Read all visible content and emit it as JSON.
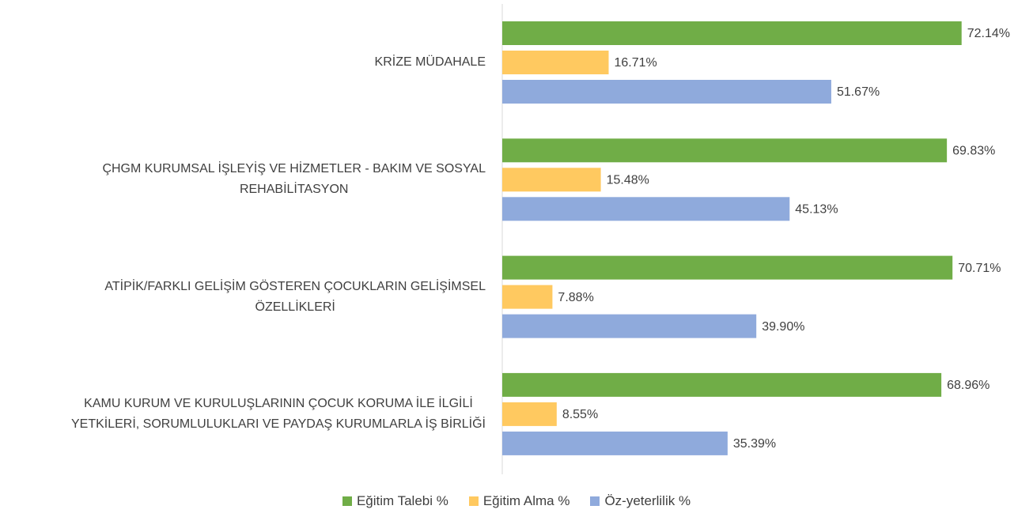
{
  "chart_data": {
    "type": "bar",
    "orientation": "horizontal",
    "categories": [
      "KRİZE MÜDAHALE",
      "ÇHGM KURUMSAL İŞLEYİŞ VE HİZMETLER - BAKIM VE SOSYAL\nREHABİLİTASYON",
      "ATİPİK/FARKLI GELİŞİM GÖSTEREN ÇOCUKLARIN GELİŞİMSEL\nÖZELLİKLERİ",
      "KAMU KURUM VE KURULUŞLARININ ÇOCUK KORUMA İLE İLGİLİ\nYETKİLERİ, SORUMLULUKLARI VE PAYDAŞ KURUMLARLA İŞ BİRLİĞİ"
    ],
    "series": [
      {
        "name": "Eğitim Talebi %",
        "color": "#70ad47",
        "values": [
          72.14,
          69.83,
          70.71,
          68.96
        ],
        "value_labels": [
          "72.14%",
          "69.83%",
          "70.71%",
          "68.96%"
        ]
      },
      {
        "name": "Eğitim Alma %",
        "color": "#ffc960",
        "values": [
          16.71,
          15.48,
          7.88,
          8.55
        ],
        "value_labels": [
          "16.71%",
          "15.48%",
          "7.88%",
          "8.55%"
        ]
      },
      {
        "name": "Öz-yeterlilik %",
        "color": "#8faadc",
        "values": [
          51.67,
          45.13,
          39.9,
          35.39
        ],
        "value_labels": [
          "51.67%",
          "45.13%",
          "39.90%",
          "35.39%"
        ]
      }
    ],
    "legend": "bottom"
  }
}
